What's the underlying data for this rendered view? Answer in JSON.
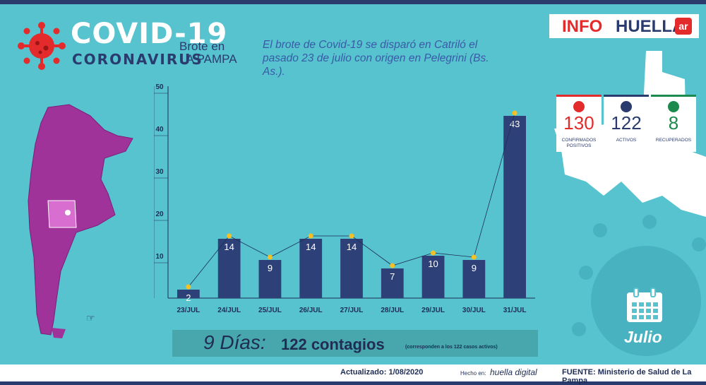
{
  "header": {
    "title_main": "COVID-19",
    "title_sub": "CORONAVIRUS",
    "brote_line1": "Brote en",
    "brote_line2": "LA PAMPA",
    "headline": "El brote de Covid-19 se disparó en Catriló el pasado 23 de julio con origen en Pelegrini (Bs. As.)."
  },
  "logo": {
    "info": "INFO",
    "huella": "HUELLA",
    "ar": "ar"
  },
  "stats": [
    {
      "value": "130",
      "label": "CONFIRMADOS POSITIVOS",
      "color": "#e32b2b"
    },
    {
      "value": "122",
      "label": "ACTIVOS",
      "color": "#2a3b6e"
    },
    {
      "value": "8",
      "label": "RECUPERADOS",
      "color": "#1c8a4c"
    }
  ],
  "banner": {
    "days": "9 Días:",
    "contagios": "122 contagios",
    "note": "(corresponden a los 122 casos activos)"
  },
  "month_label": "Julio",
  "footer": {
    "updated": "Actualizado: 1/08/2020",
    "made_by_prefix": "Hecho en:",
    "made_by": "huella digital",
    "source": "FUENTE: Ministerio de Salud de La Pampa"
  },
  "colors": {
    "bar": "#2e4078",
    "marker": "#f5c024",
    "background": "#56c3cf",
    "accent_red": "#e32b2b"
  },
  "chart_data": {
    "type": "bar",
    "categories": [
      "23/JUL",
      "24/JUL",
      "25/JUL",
      "26/JUL",
      "27/JUL",
      "28/JUL",
      "29/JUL",
      "30/JUL",
      "31/JUL"
    ],
    "values": [
      2,
      14,
      9,
      14,
      14,
      7,
      10,
      9,
      43
    ],
    "ylim": [
      0,
      50
    ],
    "yticks": [
      10,
      20,
      30,
      40,
      50
    ],
    "grid": true,
    "overlay": "line with markers connecting bar tops"
  }
}
